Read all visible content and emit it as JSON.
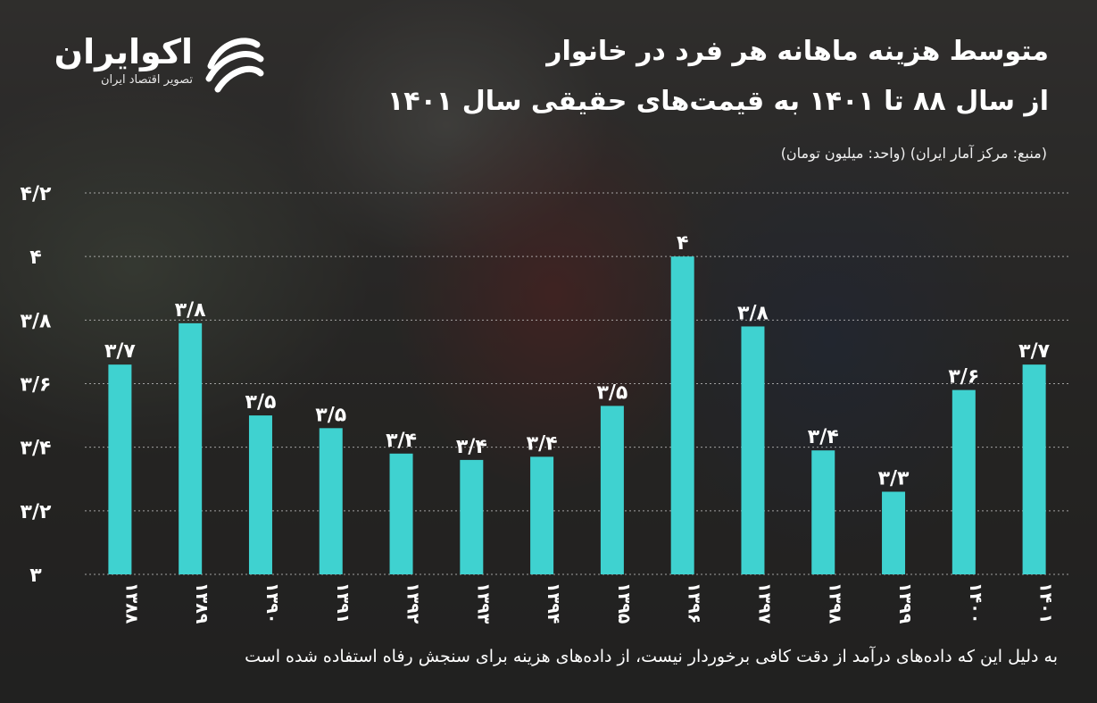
{
  "brand": {
    "name": "اکوایران",
    "tagline": "تصویر اقتصاد ایران",
    "logo_icon": "ecoiran-logo-icon"
  },
  "header": {
    "title_line1": "متوسط هزینه ماهانه هر فرد در خانوار",
    "title_line2": "از سال ۸۸ تا ۱۴۰۱ به قیمت‌های حقیقی سال ۱۴۰۱",
    "source": "(منبع: مرکز آمار ایران) (واحد: میلیون تومان)"
  },
  "footnote": "به دلیل این که داده‌های درآمد از دقت کافی برخوردار نیست، از داده‌های هزینه برای سنجش رفاه استفاده شده است",
  "colors": {
    "bar": "#3fd2d0",
    "text": "#ffffff",
    "grid": "#cccccc"
  },
  "chart_data": {
    "type": "bar",
    "categories": [
      "۱۳۸۸",
      "۱۳۸۹",
      "۱۳۹۰",
      "۱۳۹۱",
      "۱۳۹۲",
      "۱۳۹۳",
      "۱۳۹۴",
      "۱۳۹۵",
      "۱۳۹۶",
      "۱۳۹۷",
      "۱۳۹۸",
      "۱۳۹۹",
      "۱۴۰۰",
      "۱۴۰۱"
    ],
    "values": [
      3.66,
      3.79,
      3.5,
      3.46,
      3.38,
      3.36,
      3.37,
      3.53,
      4.0,
      3.78,
      3.39,
      3.26,
      3.58,
      3.66
    ],
    "value_labels": [
      "۳/۷",
      "۳/۸",
      "۳/۵",
      "۳/۵",
      "۳/۴",
      "۳/۴",
      "۳/۴",
      "۳/۵",
      "۴",
      "۳/۸",
      "۳/۴",
      "۳/۳",
      "۳/۶",
      "۳/۷"
    ],
    "ylim": [
      3,
      4.2
    ],
    "yticks": [
      3,
      3.2,
      3.4,
      3.6,
      3.8,
      4,
      4.2
    ],
    "ytick_labels": [
      "۳",
      "۳/۲",
      "۳/۴",
      "۳/۶",
      "۳/۸",
      "۴",
      "۴/۲"
    ],
    "grid": true,
    "xlabel": "",
    "ylabel": ""
  }
}
